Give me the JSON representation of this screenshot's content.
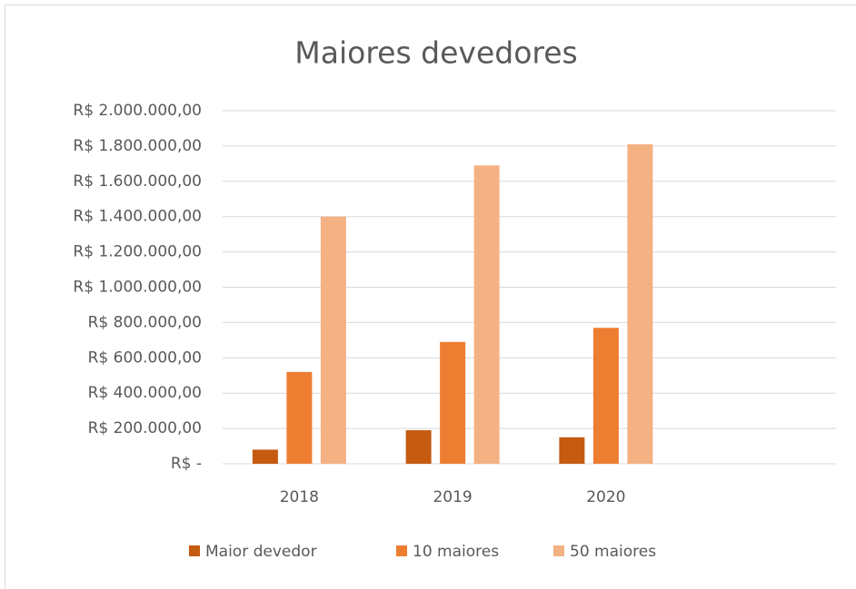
{
  "chart_data": {
    "type": "bar",
    "title": "Maiores devedores",
    "categories": [
      "2018",
      "2019",
      "2020",
      null
    ],
    "series": [
      {
        "name": "Maior devedor",
        "color": "#c55a11",
        "values": [
          80000,
          190000,
          150000,
          null
        ]
      },
      {
        "name": "10 maiores",
        "color": "#ed7d31",
        "values": [
          520000,
          690000,
          770000,
          null
        ]
      },
      {
        "name": "50 maiores",
        "color": "#f4b183",
        "values": [
          1400000,
          1690000,
          1810000,
          null
        ]
      }
    ],
    "ylim": [
      0,
      2000000
    ],
    "yticks": [
      {
        "value": 0,
        "label": "R$ -"
      },
      {
        "value": 200000,
        "label": "R$ 200.000,00"
      },
      {
        "value": 400000,
        "label": "R$ 400.000,00"
      },
      {
        "value": 600000,
        "label": "R$ 600.000,00"
      },
      {
        "value": 800000,
        "label": "R$ 800.000,00"
      },
      {
        "value": 1000000,
        "label": "R$ 1.000.000,00"
      },
      {
        "value": 1200000,
        "label": "R$ 1.200.000,00"
      },
      {
        "value": 1400000,
        "label": "R$ 1.400.000,00"
      },
      {
        "value": 1600000,
        "label": "R$ 1.600.000,00"
      },
      {
        "value": 1800000,
        "label": "R$ 1.800.000,00"
      },
      {
        "value": 2000000,
        "label": "R$ 2.000.000,00"
      }
    ],
    "grid": true,
    "legend": "bottom"
  }
}
